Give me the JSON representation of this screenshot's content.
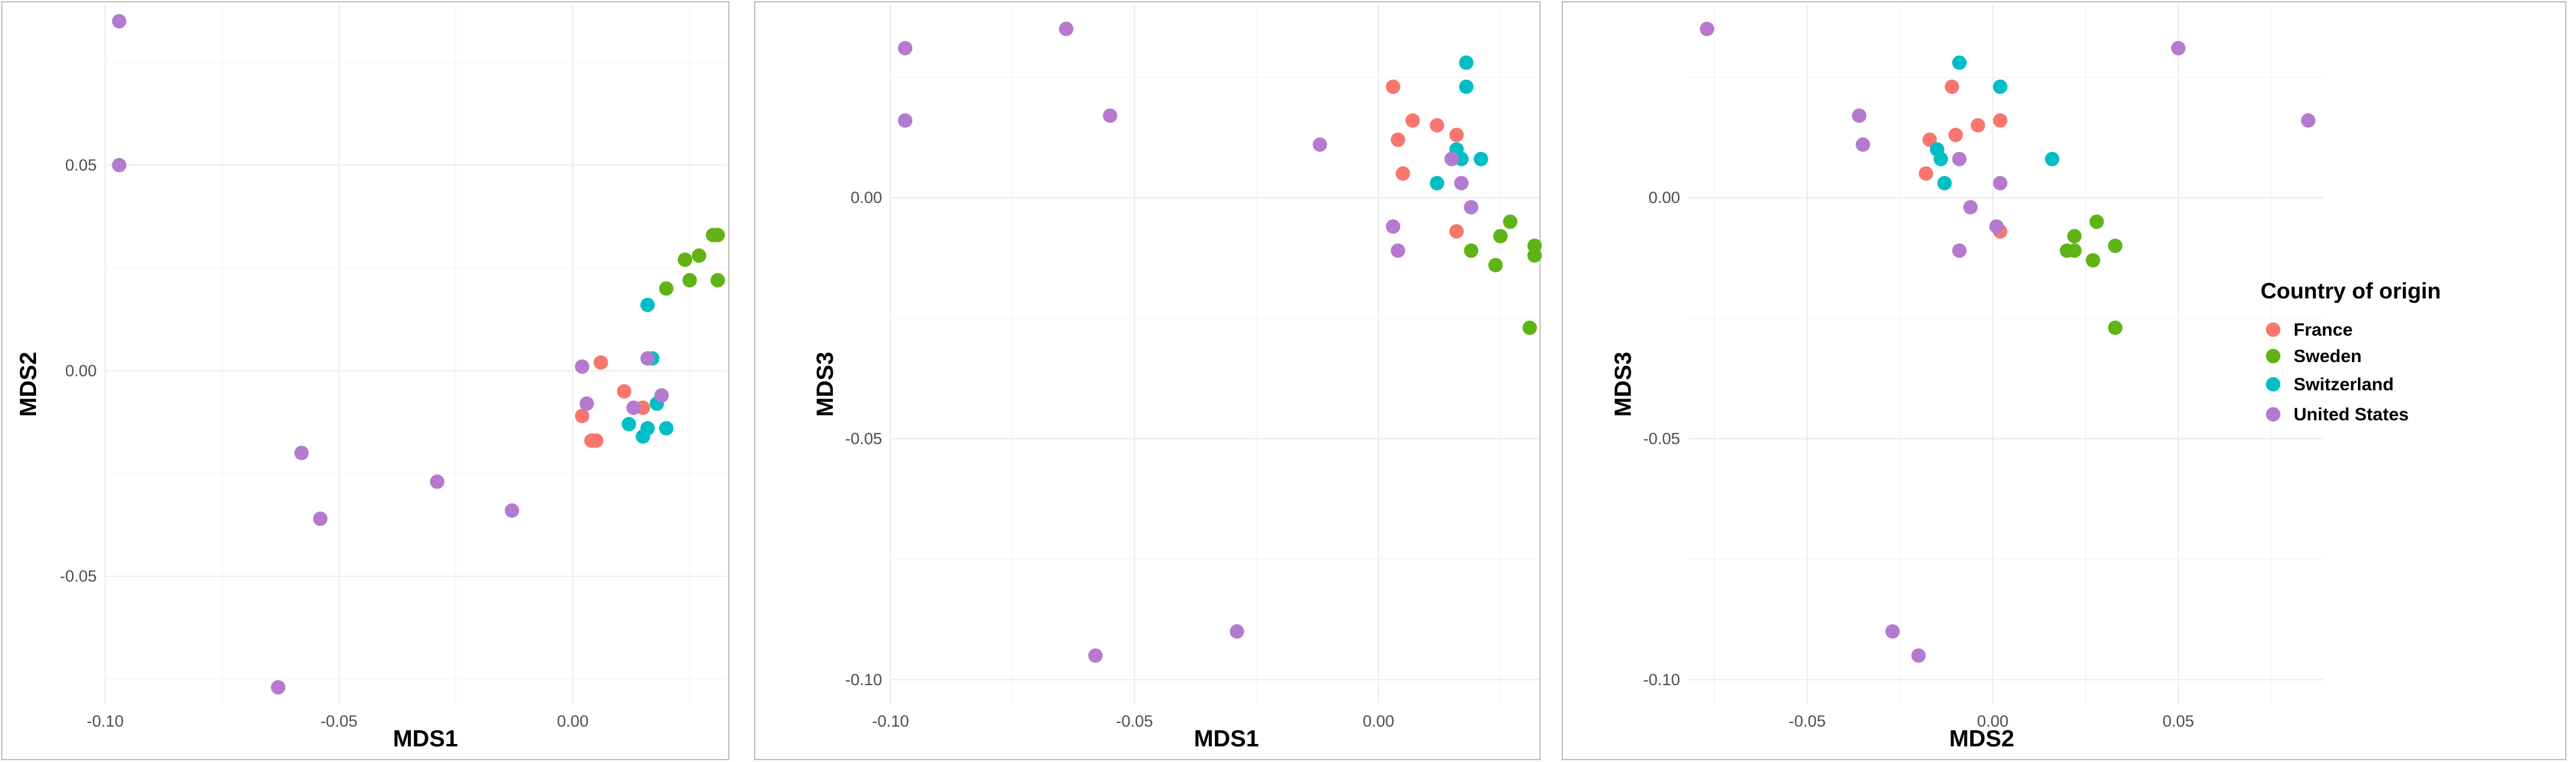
{
  "colors": {
    "France": "#F8766D",
    "Sweden": "#5FB314",
    "Switzerland": "#00BFC4",
    "United States": "#B57ACF"
  },
  "legend": {
    "title": "Country of origin",
    "entries": [
      "France",
      "Sweden",
      "Switzerland",
      "United States"
    ]
  },
  "chart_data": [
    {
      "type": "scatter",
      "title": "",
      "xlabel": "MDS1",
      "ylabel": "MDS2",
      "xlim": [
        -0.1,
        0.033
      ],
      "ylim": [
        -0.081,
        0.089
      ],
      "xticks": [
        -0.1,
        -0.05,
        0.0
      ],
      "xtick_labels": [
        "-0.10",
        "-0.05",
        "0.00"
      ],
      "yticks": [
        -0.05,
        0.0,
        0.05
      ],
      "ytick_labels": [
        "-0.05",
        "0.00",
        "0.05"
      ],
      "series": [
        {
          "name": "France",
          "points": [
            [
              0.006,
              0.002
            ],
            [
              0.011,
              -0.005
            ],
            [
              0.002,
              -0.011
            ],
            [
              0.004,
              -0.017
            ],
            [
              0.005,
              -0.017
            ],
            [
              0.015,
              -0.009
            ]
          ]
        },
        {
          "name": "Sweden",
          "points": [
            [
              0.02,
              0.02
            ],
            [
              0.024,
              0.027
            ],
            [
              0.027,
              0.028
            ],
            [
              0.03,
              0.033
            ],
            [
              0.031,
              0.033
            ],
            [
              0.025,
              0.022
            ],
            [
              0.031,
              0.022
            ]
          ]
        },
        {
          "name": "Switzerland",
          "points": [
            [
              0.016,
              0.016
            ],
            [
              0.017,
              0.003
            ],
            [
              0.018,
              -0.008
            ],
            [
              0.012,
              -0.013
            ],
            [
              0.015,
              -0.016
            ],
            [
              0.016,
              -0.014
            ],
            [
              0.02,
              -0.014
            ]
          ]
        },
        {
          "name": "United States",
          "points": [
            [
              -0.097,
              0.085
            ],
            [
              -0.097,
              0.05
            ],
            [
              -0.058,
              -0.02
            ],
            [
              -0.054,
              -0.036
            ],
            [
              -0.063,
              -0.077
            ],
            [
              -0.029,
              -0.027
            ],
            [
              -0.013,
              -0.034
            ],
            [
              0.002,
              0.001
            ],
            [
              0.003,
              -0.008
            ],
            [
              0.013,
              -0.009
            ],
            [
              0.016,
              0.003
            ],
            [
              0.019,
              -0.006
            ]
          ]
        }
      ]
    },
    {
      "type": "scatter",
      "title": "",
      "xlabel": "MDS1",
      "ylabel": "MDS3",
      "xlim": [
        -0.1,
        0.033
      ],
      "ylim": [
        -0.105,
        0.04
      ],
      "xticks": [
        -0.1,
        -0.05,
        0.0
      ],
      "xtick_labels": [
        "-0.10",
        "-0.05",
        "0.00"
      ],
      "yticks": [
        -0.1,
        -0.05,
        0.0
      ],
      "ytick_labels": [
        "-0.10",
        "-0.05",
        "0.00"
      ],
      "series": [
        {
          "name": "France",
          "points": [
            [
              0.003,
              0.023
            ],
            [
              0.007,
              0.016
            ],
            [
              0.012,
              0.015
            ],
            [
              0.004,
              0.012
            ],
            [
              0.016,
              0.013
            ],
            [
              0.005,
              0.005
            ],
            [
              0.016,
              -0.007
            ]
          ]
        },
        {
          "name": "Sweden",
          "points": [
            [
              0.027,
              -0.005
            ],
            [
              0.025,
              -0.008
            ],
            [
              0.019,
              -0.011
            ],
            [
              0.024,
              -0.014
            ],
            [
              0.032,
              -0.01
            ],
            [
              0.032,
              -0.012
            ],
            [
              0.031,
              -0.027
            ]
          ]
        },
        {
          "name": "Switzerland",
          "points": [
            [
              0.018,
              0.028
            ],
            [
              0.018,
              0.023
            ],
            [
              0.016,
              0.01
            ],
            [
              0.017,
              0.008
            ],
            [
              0.021,
              0.008
            ],
            [
              0.012,
              0.003
            ]
          ]
        },
        {
          "name": "United States",
          "points": [
            [
              -0.097,
              0.031
            ],
            [
              -0.097,
              0.016
            ],
            [
              -0.064,
              0.035
            ],
            [
              -0.055,
              0.017
            ],
            [
              -0.012,
              0.011
            ],
            [
              0.015,
              0.008
            ],
            [
              0.017,
              0.003
            ],
            [
              0.019,
              -0.002
            ],
            [
              0.003,
              -0.006
            ],
            [
              0.004,
              -0.011
            ],
            [
              -0.058,
              -0.095
            ],
            [
              -0.029,
              -0.09
            ]
          ]
        }
      ]
    },
    {
      "type": "scatter",
      "title": "",
      "xlabel": "MDS2",
      "ylabel": "MDS3",
      "xlim": [
        -0.082,
        0.089
      ],
      "ylim": [
        -0.105,
        0.04
      ],
      "xticks": [
        -0.05,
        0.0,
        0.05
      ],
      "xtick_labels": [
        "-0.05",
        "0.00",
        "0.05"
      ],
      "yticks": [
        -0.1,
        -0.05,
        0.0
      ],
      "ytick_labels": [
        "-0.10",
        "-0.05",
        "0.00"
      ],
      "series": [
        {
          "name": "France",
          "points": [
            [
              -0.011,
              0.023
            ],
            [
              0.002,
              0.016
            ],
            [
              -0.004,
              0.015
            ],
            [
              -0.01,
              0.013
            ],
            [
              -0.017,
              0.012
            ],
            [
              -0.018,
              0.005
            ],
            [
              0.002,
              -0.007
            ]
          ]
        },
        {
          "name": "Sweden",
          "points": [
            [
              0.028,
              -0.005
            ],
            [
              0.022,
              -0.008
            ],
            [
              0.02,
              -0.011
            ],
            [
              0.022,
              -0.011
            ],
            [
              0.027,
              -0.013
            ],
            [
              0.033,
              -0.01
            ],
            [
              0.033,
              -0.027
            ]
          ]
        },
        {
          "name": "Switzerland",
          "points": [
            [
              -0.009,
              0.028
            ],
            [
              0.002,
              0.023
            ],
            [
              -0.015,
              0.01
            ],
            [
              -0.014,
              0.008
            ],
            [
              0.016,
              0.008
            ],
            [
              -0.013,
              0.003
            ]
          ]
        },
        {
          "name": "United States",
          "points": [
            [
              -0.077,
              0.035
            ],
            [
              0.05,
              0.031
            ],
            [
              0.085,
              0.016
            ],
            [
              -0.036,
              0.017
            ],
            [
              -0.035,
              0.011
            ],
            [
              -0.009,
              0.008
            ],
            [
              -0.006,
              -0.002
            ],
            [
              0.002,
              0.003
            ],
            [
              0.001,
              -0.006
            ],
            [
              -0.009,
              -0.011
            ],
            [
              -0.027,
              -0.09
            ],
            [
              -0.02,
              -0.095
            ]
          ]
        }
      ]
    }
  ]
}
